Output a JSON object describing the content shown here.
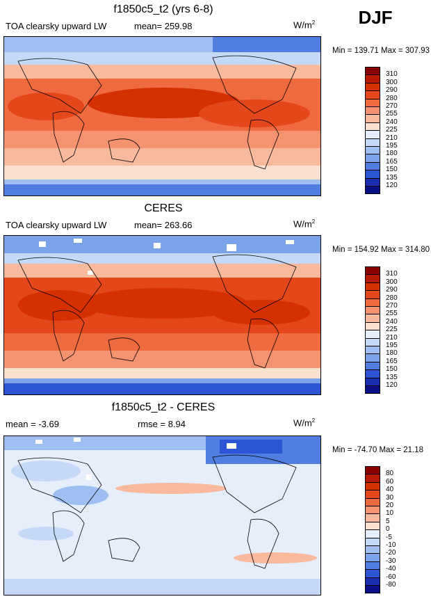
{
  "season": "DJF",
  "panels": [
    {
      "title": "f1850c5_t2 (yrs 6-8)",
      "left_label": "TOA clearsky upward LW",
      "mid_label": "mean= 259.98",
      "units": "W/m",
      "units_sup": "2",
      "minmax": "Min = 139.71 Max = 307.93",
      "colorbar": {
        "levels": [
          "310",
          "300",
          "290",
          "280",
          "270",
          "255",
          "240",
          "225",
          "210",
          "195",
          "180",
          "165",
          "150",
          "135",
          "120"
        ],
        "colors": [
          "#8b0000",
          "#b81a00",
          "#d53000",
          "#e4481a",
          "#ef6a3e",
          "#f59270",
          "#f8b99d",
          "#fbe0cf",
          "#e6eefb",
          "#c5d9f7",
          "#9fbff2",
          "#7aa3ea",
          "#4f7de0",
          "#2c55d4",
          "#1a2fb0",
          "#0b0f86"
        ]
      }
    },
    {
      "title": "CERES",
      "left_label": "TOA clearsky upward LW",
      "mid_label": "mean= 263.66",
      "units": "W/m",
      "units_sup": "2",
      "minmax": "Min = 154.92 Max = 314.80",
      "colorbar": {
        "levels": [
          "310",
          "300",
          "290",
          "280",
          "270",
          "255",
          "240",
          "225",
          "210",
          "195",
          "180",
          "165",
          "150",
          "135",
          "120"
        ],
        "colors": [
          "#8b0000",
          "#b81a00",
          "#d53000",
          "#e4481a",
          "#ef6a3e",
          "#f59270",
          "#f8b99d",
          "#fbe0cf",
          "#e6eefb",
          "#c5d9f7",
          "#9fbff2",
          "#7aa3ea",
          "#4f7de0",
          "#2c55d4",
          "#1a2fb0",
          "#0b0f86"
        ]
      }
    },
    {
      "title": "f1850c5_t2 - CERES",
      "left_label": "mean =  -3.69",
      "mid_label": "rmse =   8.94",
      "units": "W/m",
      "units_sup": "2",
      "minmax": "Min = -74.70 Max =  21.18",
      "colorbar": {
        "levels": [
          "80",
          "60",
          "40",
          "30",
          "20",
          "10",
          "5",
          "0",
          "-5",
          "-10",
          "-20",
          "-30",
          "-40",
          "-60",
          "-80"
        ],
        "colors": [
          "#8b0000",
          "#b81a00",
          "#d53000",
          "#e4481a",
          "#ef6a3e",
          "#f59270",
          "#f8b99d",
          "#fbe0cf",
          "#e6eefb",
          "#c5d9f7",
          "#9fbff2",
          "#7aa3ea",
          "#4f7de0",
          "#2c55d4",
          "#1a2fb0",
          "#0b0f86"
        ]
      }
    }
  ],
  "chart_data": [
    {
      "type": "heatmap",
      "title": "f1850c5_t2 (yrs 6-8)",
      "variable": "TOA clearsky upward LW",
      "mean": 259.98,
      "min": 139.71,
      "max": 307.93,
      "units": "W/m2",
      "contour_levels": [
        120,
        135,
        150,
        165,
        180,
        195,
        210,
        225,
        240,
        255,
        270,
        280,
        290,
        300,
        310
      ]
    },
    {
      "type": "heatmap",
      "title": "CERES",
      "variable": "TOA clearsky upward LW",
      "mean": 263.66,
      "min": 154.92,
      "max": 314.8,
      "units": "W/m2",
      "contour_levels": [
        120,
        135,
        150,
        165,
        180,
        195,
        210,
        225,
        240,
        255,
        270,
        280,
        290,
        300,
        310
      ]
    },
    {
      "type": "heatmap",
      "title": "f1850c5_t2 - CERES",
      "mean": -3.69,
      "rmse": 8.94,
      "min": -74.7,
      "max": 21.18,
      "units": "W/m2",
      "contour_levels": [
        -80,
        -60,
        -40,
        -30,
        -20,
        -10,
        -5,
        0,
        5,
        10,
        20,
        30,
        40,
        60,
        80
      ]
    }
  ]
}
